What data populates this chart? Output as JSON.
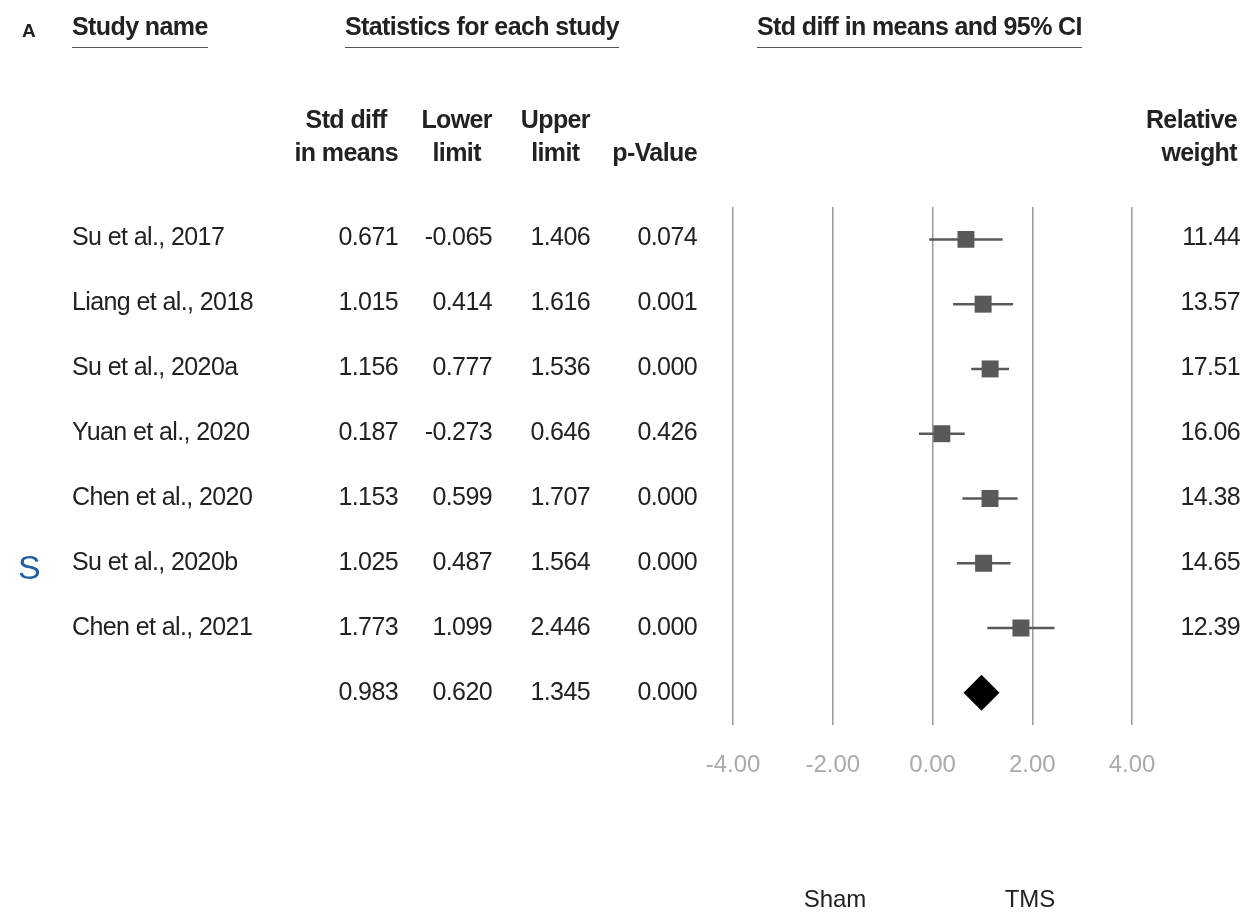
{
  "chart_data": [
    {
      "type": "other",
      "title": "Statistics for each study",
      "annotations": [
        "A",
        "S",
        "Std diff in means",
        "Lower limit",
        "Upper limit",
        "p-Value",
        "0.671",
        "-0.065",
        "1.406",
        "0.074",
        "1.015",
        "0.414",
        "1.616",
        "0.001",
        "1.156",
        "0.777",
        "1.536",
        "0.000",
        "0.187",
        "-0.273",
        "0.646",
        "0.426",
        "1.153",
        "0.599",
        "1.707",
        "0.000",
        "1.025",
        "0.487",
        "1.564",
        "0.000",
        "1.773",
        "1.099",
        "2.446",
        "0.000",
        "0.983",
        "0.620",
        "1.345",
        "0.000",
        "Study name",
        "Su et al., 2017",
        "Liang et al., 2018",
        "Su et al., 2020a",
        "Yuan et al., 2020",
        "Chen et al., 2020",
        "Su et al., 2020b",
        "Chen et al., 2021"
      ]
    },
    {
      "type": "scatter",
      "title": "Std diff in means and 95% CI",
      "orientation": "horizontal",
      "categories": [
        null,
        null,
        null,
        null,
        null,
        null,
        null,
        null
      ],
      "series": [
        {
          "color": "#595959",
          "marker": "square",
          "values": [
            0.671,
            1.015,
            1.156,
            0.187,
            1.153,
            1.025,
            1.773,
            null
          ],
          "errors": [
            [
              -0.065,
              1.406
            ],
            [
              0.414,
              1.616
            ],
            [
              0.777,
              1.536
            ],
            [
              -0.273,
              0.646
            ],
            [
              0.599,
              1.707
            ],
            [
              0.487,
              1.564
            ],
            [
              1.099,
              2.446
            ],
            null
          ]
        },
        {
          "color": "#000000",
          "marker": "diamond",
          "values": [
            null,
            null,
            null,
            null,
            null,
            null,
            null,
            0.983
          ]
        }
      ],
      "xlim": [
        -4,
        4
      ],
      "xticks": [
        {
          "value": -4,
          "label": "-4.00"
        },
        {
          "value": -2,
          "label": "-2.00"
        },
        {
          "value": 0,
          "label": "0.00"
        },
        {
          "value": 2,
          "label": "2.00"
        },
        {
          "value": 4,
          "label": "4.00"
        }
      ],
      "grid": "x",
      "legend": false,
      "annotations": [
        "Sham",
        "TMS"
      ]
    },
    {
      "type": "other",
      "annotations": [
        "Relative weight",
        "11.44",
        "13.57",
        "17.51",
        "16.06",
        "14.38",
        "14.65",
        "12.39"
      ]
    }
  ]
}
